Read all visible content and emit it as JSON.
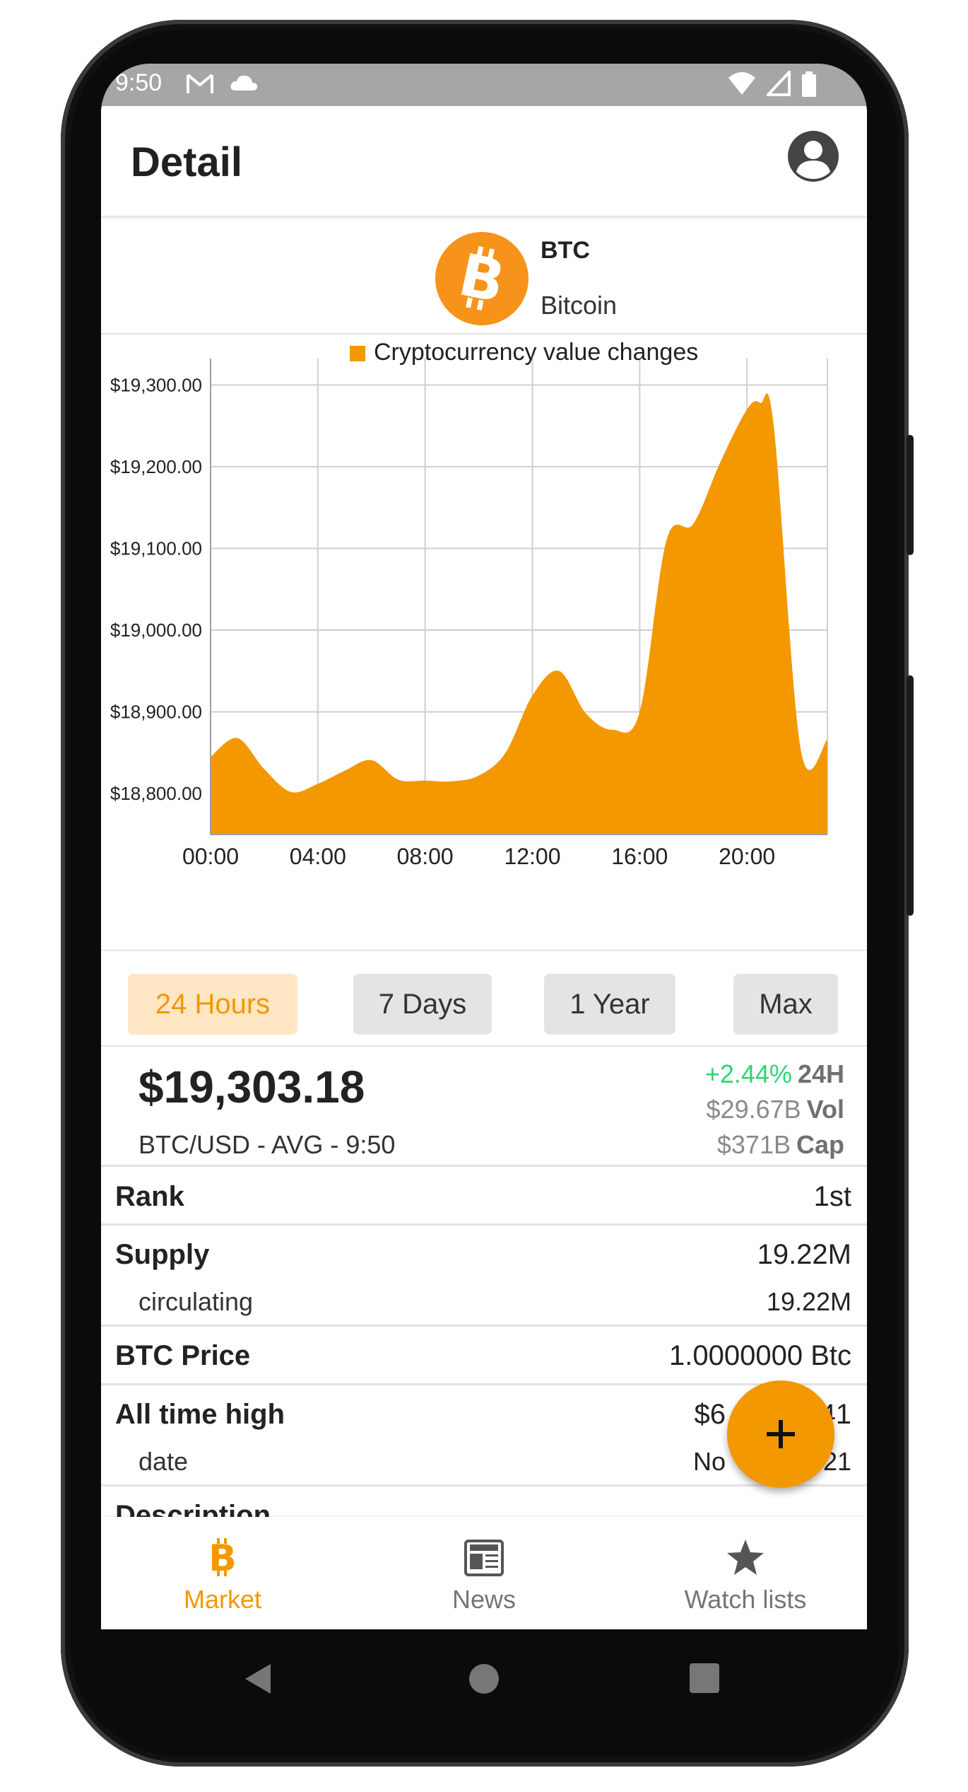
{
  "status_bar": {
    "time": "9:50",
    "icons": [
      "gmail-icon",
      "cloud-icon",
      "wifi-icon",
      "signal-icon",
      "battery-icon"
    ]
  },
  "app_bar": {
    "title": "Detail",
    "account_icon": "account-circle-icon"
  },
  "coin": {
    "symbol": "BTC",
    "name": "Bitcoin",
    "logo_icon": "bitcoin-logo-icon",
    "color": "#f7931a"
  },
  "chart_data": {
    "type": "area",
    "legend": "Cryptocurrency value changes",
    "legend_position": "top-center",
    "color": "#f39800",
    "grid": true,
    "y_tick_labels": [
      "$19,300.00",
      "$19,200.00",
      "$19,100.00",
      "$19,000.00",
      "$18,900.00",
      "$18,800.00"
    ],
    "y_ticks": [
      19300,
      19200,
      19100,
      19000,
      18900,
      18800
    ],
    "x_tick_labels": [
      "00:00",
      "04:00",
      "08:00",
      "12:00",
      "16:00",
      "20:00"
    ],
    "x_ticks": [
      0,
      4,
      8,
      12,
      16,
      20
    ],
    "xlim": [
      0,
      23
    ],
    "ylim": [
      18750,
      19315
    ],
    "x": [
      0,
      1,
      2,
      3,
      4,
      5,
      6,
      7,
      8,
      9,
      10,
      11,
      12,
      13,
      14,
      15,
      16,
      17,
      18,
      19,
      20,
      20.5,
      21,
      22,
      23
    ],
    "y": [
      18845,
      18868,
      18830,
      18802,
      18812,
      18828,
      18841,
      18817,
      18816,
      18815,
      18822,
      18850,
      18920,
      18950,
      18898,
      18878,
      18900,
      19110,
      19130,
      19205,
      19270,
      19278,
      19250,
      18855,
      18866
    ]
  },
  "range_buttons": [
    {
      "label": "24 Hours",
      "active": true
    },
    {
      "label": "7 Days",
      "active": false
    },
    {
      "label": "1 Year",
      "active": false
    },
    {
      "label": "Max",
      "active": false
    }
  ],
  "price": {
    "value": "$19,303.18",
    "pair": "BTC/USD - AVG - 9:50",
    "change": "+2.44%",
    "change_label": "24H",
    "volume": "$29.67B",
    "volume_label": "Vol",
    "cap": "$371B",
    "cap_label": "Cap"
  },
  "info": {
    "rank_key": "Rank",
    "rank_val": "1st",
    "supply_key": "Supply",
    "supply_val": "19.22M",
    "circulating_key": "circulating",
    "circulating_val": "19.22M",
    "price_key": "BTC Price",
    "price_val": "1.0000000 Btc",
    "ath_key": "All time high",
    "ath_val_visible": "$6",
    "ath_val_tail": "41",
    "date_key": "date",
    "date_val_visible": "No",
    "date_val_tail": "21",
    "description_key": "Description"
  },
  "fab": {
    "icon": "add-icon",
    "label": "+"
  },
  "bottom_nav": [
    {
      "label": "Market",
      "icon": "bitcoin-icon",
      "active": true
    },
    {
      "label": "News",
      "icon": "newspaper-icon",
      "active": false
    },
    {
      "label": "Watch lists",
      "icon": "star-icon",
      "active": false
    }
  ],
  "system_nav": [
    "back-icon",
    "home-icon",
    "recents-icon"
  ]
}
